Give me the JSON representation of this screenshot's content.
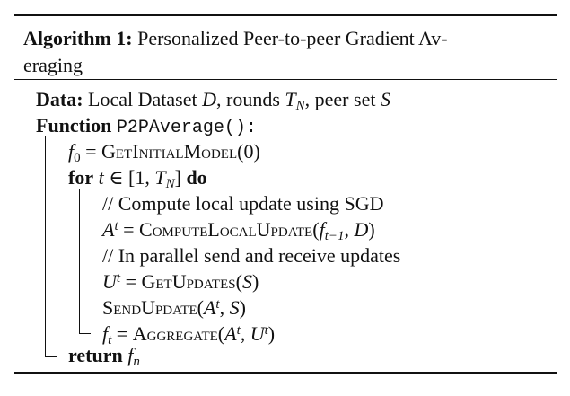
{
  "algorithm": {
    "caption_label": "Algorithm 1:",
    "caption_line1": "Personalized Peer-to-peer Gradient Av-",
    "caption_line2": "eraging",
    "data_label": "Data:",
    "data_text_prefix": "Local Dataset",
    "data_d": "D",
    "data_rounds": ", rounds",
    "data_t": "T",
    "data_n_sub": "N",
    "data_peer": ", peer set",
    "data_s": "S",
    "function_kw": "Function",
    "function_name": "P2PAverage():",
    "line_f0_lhs": "f",
    "line_f0_sub": "0",
    "line_f0_eq": " = ",
    "line_f0_call": "GetInitialModel",
    "line_f0_args": "(0)",
    "for_kw": "for",
    "for_var": "t",
    "for_in": " ∈ [1, ",
    "for_t": "T",
    "for_t_sub": "N",
    "for_close": "]",
    "do_kw": "do",
    "comment1": "// Compute local update using SGD",
    "line_a_lhs": "A",
    "line_a_sup": "t",
    "line_a_eq": " = ",
    "line_a_call": "ComputeLocalUpdate",
    "line_a_open": "(",
    "line_a_f": "f",
    "line_a_f_sub": "t−1",
    "line_a_sep": ", ",
    "line_a_d": "D",
    "line_a_close": ")",
    "comment2": "// In parallel send and receive updates",
    "line_u_lhs": "U",
    "line_u_sup": "t",
    "line_u_eq": " = ",
    "line_u_call": "GetUpdates",
    "line_u_open": "(",
    "line_u_s": "S",
    "line_u_close": ")",
    "line_send_call": "SendUpdate",
    "line_send_open": "(",
    "line_send_a": "A",
    "line_send_a_sup": "t",
    "line_send_sep": ", ",
    "line_send_s": "S",
    "line_send_close": ")",
    "line_agg_lhs": "f",
    "line_agg_sub": "t",
    "line_agg_eq": " = ",
    "line_agg_call": "Aggregate",
    "line_agg_open": "(",
    "line_agg_a": "A",
    "line_agg_a_sup": "t",
    "line_agg_sep": ", ",
    "line_agg_u": "U",
    "line_agg_u_sup": "t",
    "line_agg_close": ")",
    "return_kw": "return",
    "return_var": "f",
    "return_sub": "n"
  }
}
